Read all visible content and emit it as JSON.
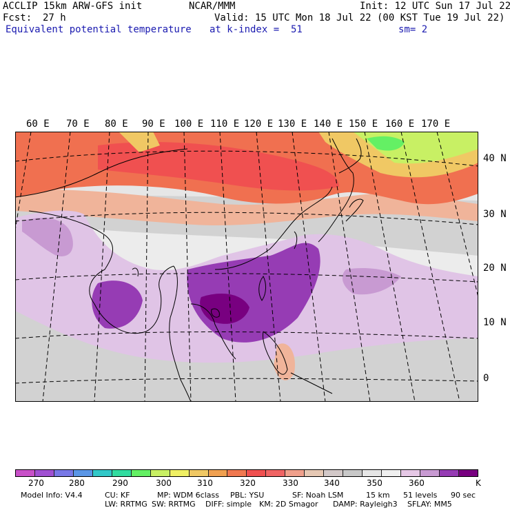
{
  "header": {
    "model": "ACCLIP 15km ARW-GFS init",
    "center": "NCAR/MMM",
    "init": "Init: 12 UTC Sun 17 Jul 22",
    "fcst_label": "Fcst:",
    "fcst_value": "27 h",
    "valid": "Valid: 15 UTC Mon 18 Jul 22 (00 KST Tue 19 Jul 22)",
    "field": "Equivalent potential temperature",
    "level": "at k-index =  51",
    "smooth": "sm= 2"
  },
  "map": {
    "lon_labels": [
      "60 E",
      "70 E",
      "80 E",
      "90 E",
      "100 E",
      "110 E",
      "120 E",
      "130 E",
      "140 E",
      "150 E",
      "160 E",
      "170 E"
    ],
    "lat_labels": [
      "40 N",
      "30 N",
      "20 N",
      "10 N",
      "0"
    ]
  },
  "colorbar": {
    "colors": [
      "#c850c8",
      "#a050d2",
      "#7878e6",
      "#5a96e6",
      "#32c8c8",
      "#32dca0",
      "#64f064",
      "#c8f064",
      "#f0f064",
      "#f0c864",
      "#f0a050",
      "#f07850",
      "#f05050",
      "#f06464",
      "#f0a08c",
      "#e6c8b4",
      "#d2c8c8",
      "#c8c8c8",
      "#e6e6e6",
      "#f0f0f0",
      "#e6c8e6",
      "#c89ad2",
      "#963cb4",
      "#780080"
    ],
    "labels": [
      "270",
      "280",
      "290",
      "300",
      "310",
      "320",
      "330",
      "340",
      "350",
      "360"
    ],
    "unit": "K"
  },
  "footer": {
    "line1": [
      "Model Info: V4.4",
      "CU: KF",
      "MP: WDM 6class",
      "PBL: YSU",
      "SF: Noah LSM",
      "15 km",
      "51 levels",
      "90 sec"
    ],
    "line2": [
      "LW: RRTMG",
      "SW: RRTMG",
      "DIFF: simple",
      "KM: 2D Smagor",
      "DAMP: Rayleigh3",
      "SFLAY: MM5"
    ]
  }
}
